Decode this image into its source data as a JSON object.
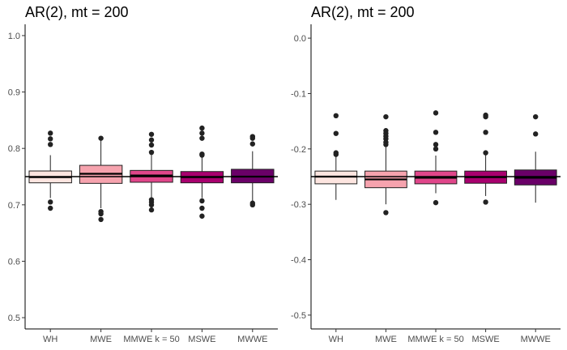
{
  "chart_data": [
    {
      "type": "boxplot",
      "title": "AR(2), mt = 200",
      "xlabel": "",
      "ylabel": "",
      "categories": [
        "WH",
        "MWE",
        "MMWE k = 50",
        "MSWE",
        "MWWE"
      ],
      "ylim": [
        0.48,
        1.02
      ],
      "yticks": [
        0.5,
        0.6,
        0.7,
        0.8,
        0.9,
        1.0
      ],
      "ytick_labels": [
        "0.5",
        "0.6",
        "0.7",
        "0.8",
        "0.9",
        "1.0"
      ],
      "reference_line": 0.75,
      "grid": false,
      "fill_colors": [
        "#fde5e0",
        "#f6a3ae",
        "#e0468a",
        "#a8006e",
        "#6a0068"
      ],
      "boxes": [
        {
          "q1": 0.739,
          "median": 0.749,
          "q3": 0.76,
          "whisker_low": 0.712,
          "whisker_high": 0.788,
          "outliers": [
            0.827,
            0.817,
            0.807,
            0.705,
            0.694
          ]
        },
        {
          "q1": 0.738,
          "median": 0.755,
          "q3": 0.77,
          "whisker_low": 0.694,
          "whisker_high": 0.816,
          "outliers": [
            0.818,
            0.688,
            0.684,
            0.674
          ]
        },
        {
          "q1": 0.74,
          "median": 0.752,
          "q3": 0.761,
          "whisker_low": 0.713,
          "whisker_high": 0.791,
          "outliers": [
            0.825,
            0.815,
            0.806,
            0.793,
            0.709,
            0.705,
            0.7,
            0.691
          ]
        },
        {
          "q1": 0.739,
          "median": 0.749,
          "q3": 0.759,
          "whisker_low": 0.712,
          "whisker_high": 0.786,
          "outliers": [
            0.836,
            0.827,
            0.818,
            0.79,
            0.788,
            0.707,
            0.694,
            0.68
          ]
        },
        {
          "q1": 0.739,
          "median": 0.75,
          "q3": 0.763,
          "whisker_low": 0.707,
          "whisker_high": 0.795,
          "outliers": [
            0.821,
            0.818,
            0.808,
            0.703,
            0.7
          ]
        }
      ]
    },
    {
      "type": "boxplot",
      "title": "AR(2), mt = 200",
      "xlabel": "",
      "ylabel": "",
      "categories": [
        "WH",
        "MWE",
        "MMWE k = 50",
        "MSWE",
        "MWWE"
      ],
      "ylim": [
        -0.525,
        0.025
      ],
      "yticks": [
        0.0,
        -0.1,
        -0.2,
        -0.3,
        -0.4,
        -0.5
      ],
      "ytick_labels": [
        "0.0",
        "-0.1",
        "-0.2",
        "-0.3",
        "-0.4",
        "-0.5"
      ],
      "reference_line": -0.25,
      "grid": false,
      "fill_colors": [
        "#fde5e0",
        "#f6a3ae",
        "#e0468a",
        "#a8006e",
        "#6a0068"
      ],
      "boxes": [
        {
          "q1": -0.263,
          "median": -0.25,
          "q3": -0.24,
          "whisker_low": -0.292,
          "whisker_high": -0.212,
          "outliers": [
            -0.14,
            -0.172,
            -0.207,
            -0.21
          ]
        },
        {
          "q1": -0.27,
          "median": -0.255,
          "q3": -0.24,
          "whisker_low": -0.3,
          "whisker_high": -0.196,
          "outliers": [
            -0.142,
            -0.167,
            -0.172,
            -0.177,
            -0.182,
            -0.188,
            -0.192,
            -0.315
          ]
        },
        {
          "q1": -0.263,
          "median": -0.252,
          "q3": -0.24,
          "whisker_low": -0.28,
          "whisker_high": -0.212,
          "outliers": [
            -0.135,
            -0.17,
            -0.192,
            -0.2,
            -0.297
          ]
        },
        {
          "q1": -0.262,
          "median": -0.251,
          "q3": -0.24,
          "whisker_low": -0.285,
          "whisker_high": -0.207,
          "outliers": [
            -0.139,
            -0.142,
            -0.17,
            -0.207,
            -0.296
          ]
        },
        {
          "q1": -0.265,
          "median": -0.252,
          "q3": -0.238,
          "whisker_low": -0.297,
          "whisker_high": -0.205,
          "outliers": [
            -0.142,
            -0.173
          ]
        }
      ]
    }
  ]
}
